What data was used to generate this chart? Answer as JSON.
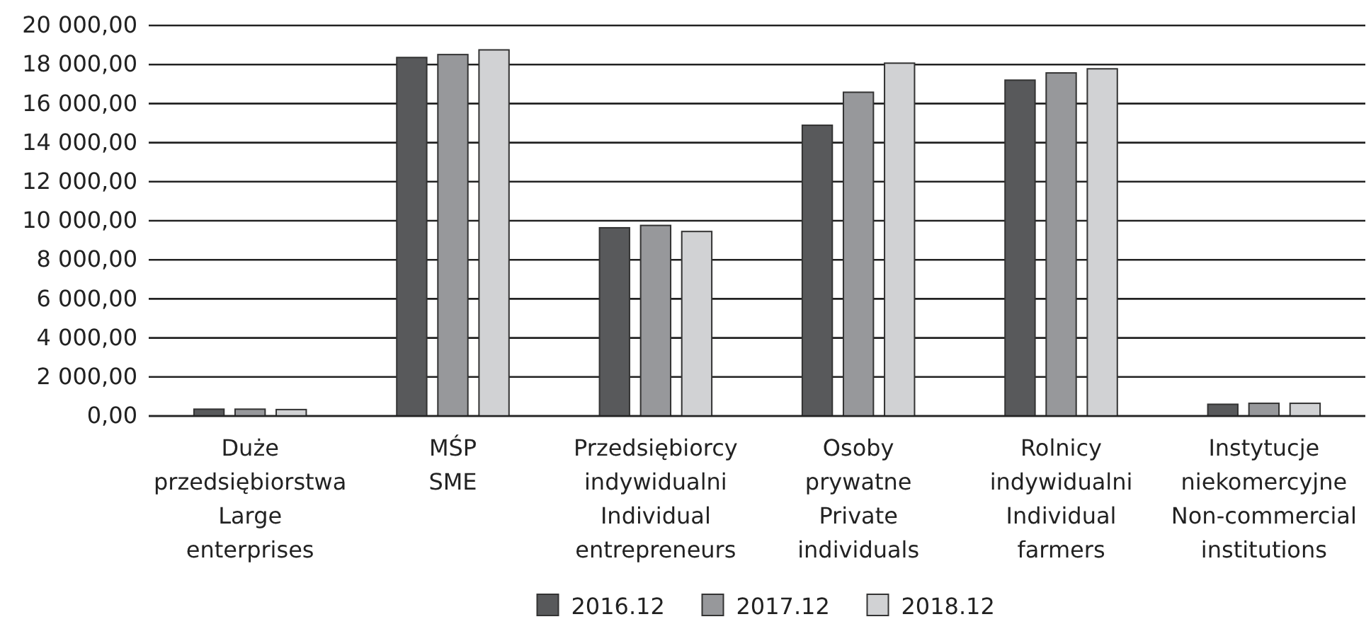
{
  "chart_data": {
    "type": "bar",
    "categories": [
      "Duże\nprzedsiębiorstwa\nLarge\nenterprises",
      "MŚP\nSME",
      "Przedsiębiorcy\nindywidualni\nIndividual\nentrepreneurs",
      "Osoby\nprywatne\nPrivate\nindividuals",
      "Rolnicy\nindywidualni\nIndividual\nfarmers",
      "Instytucje\nniekomercyjne\nNon-commercial\ninstitutions"
    ],
    "series": [
      {
        "name": "2016.12",
        "color": "#58595b",
        "values": [
          350,
          18360,
          9640,
          14890,
          17200,
          600
        ]
      },
      {
        "name": "2017.12",
        "color": "#97989b",
        "values": [
          350,
          18510,
          9760,
          16580,
          17570,
          650
        ]
      },
      {
        "name": "2018.12",
        "color": "#d1d2d4",
        "values": [
          330,
          18750,
          9450,
          18070,
          17780,
          650
        ]
      }
    ],
    "ylim": [
      0,
      20000
    ],
    "yticks": [
      {
        "value": 0,
        "label": "0,00"
      },
      {
        "value": 2000,
        "label": "2 000,00"
      },
      {
        "value": 4000,
        "label": "4 000,00"
      },
      {
        "value": 6000,
        "label": "6 000,00"
      },
      {
        "value": 8000,
        "label": "8 000,00"
      },
      {
        "value": 10000,
        "label": "10 000,00"
      },
      {
        "value": 12000,
        "label": "12 000,00"
      },
      {
        "value": 14000,
        "label": "14 000,00"
      },
      {
        "value": 16000,
        "label": "16 000,00"
      },
      {
        "value": 18000,
        "label": "18 000,00"
      },
      {
        "value": 20000,
        "label": "20 000,00"
      }
    ],
    "grid": "y",
    "legend": "bottom"
  }
}
